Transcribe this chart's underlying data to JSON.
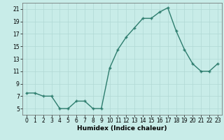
{
  "x": [
    0,
    1,
    2,
    3,
    4,
    5,
    6,
    7,
    8,
    9,
    10,
    11,
    12,
    13,
    14,
    15,
    16,
    17,
    18,
    19,
    20,
    21,
    22,
    23
  ],
  "y": [
    7.5,
    7.5,
    7.0,
    7.0,
    5.0,
    5.0,
    6.2,
    6.2,
    5.0,
    5.0,
    11.5,
    14.5,
    16.5,
    18.0,
    19.5,
    19.5,
    20.5,
    21.2,
    17.5,
    14.5,
    12.2,
    11.0,
    11.0,
    12.2
  ],
  "line_color": "#2e7d6e",
  "marker_color": "#2e7d6e",
  "bg_color": "#c8ece8",
  "grid_color": "#b0d8d4",
  "xlabel": "Humidex (Indice chaleur)",
  "ylim": [
    4,
    22
  ],
  "xlim": [
    -0.5,
    23.5
  ],
  "yticks": [
    5,
    7,
    9,
    11,
    13,
    15,
    17,
    19,
    21
  ],
  "xticks": [
    0,
    1,
    2,
    3,
    4,
    5,
    6,
    7,
    8,
    9,
    10,
    11,
    12,
    13,
    14,
    15,
    16,
    17,
    18,
    19,
    20,
    21,
    22,
    23
  ],
  "tick_fontsize": 5.5,
  "label_fontsize": 6.5,
  "linewidth": 1.0,
  "markersize": 2.5
}
